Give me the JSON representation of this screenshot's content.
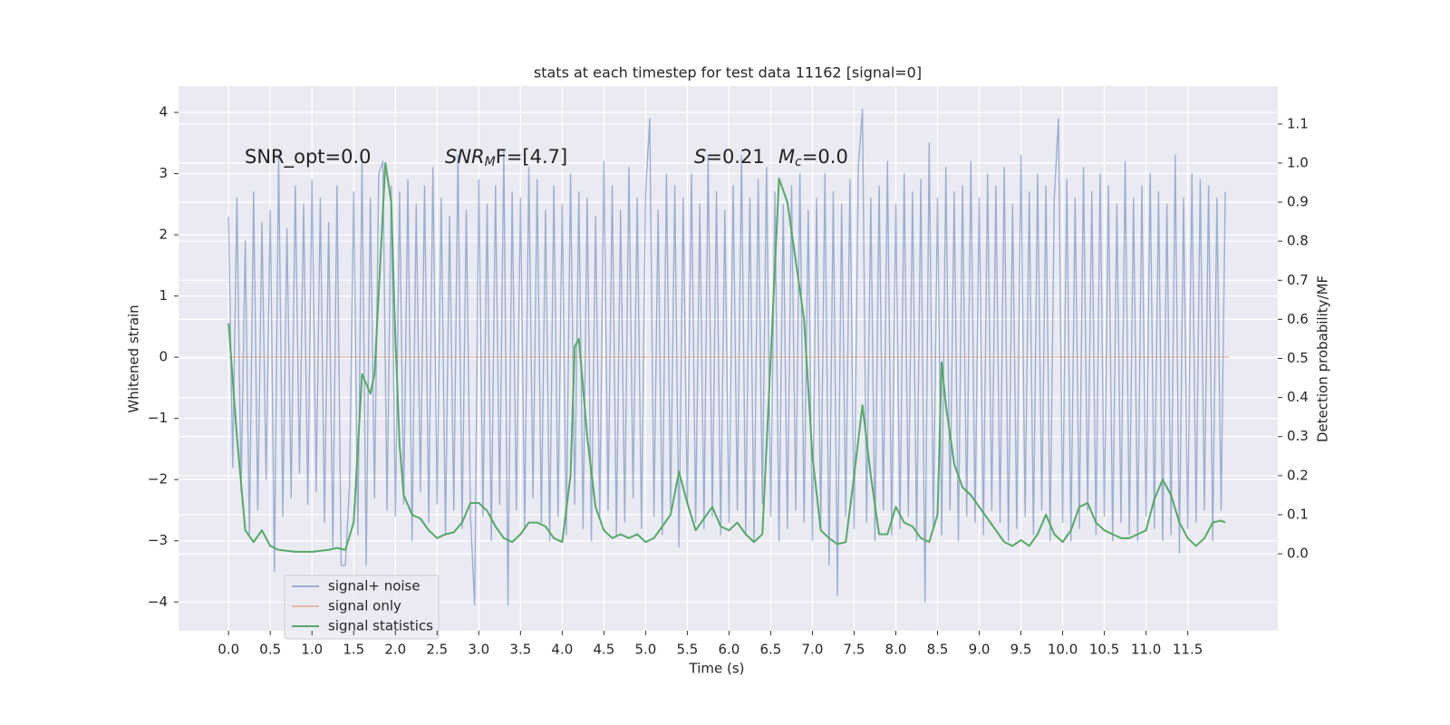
{
  "chart_data": {
    "type": "line",
    "title": "stats at each timestep for test data 11162 [signal=0]",
    "xlabel": "Time (s)",
    "ylabel": "Whitened strain",
    "y2label": "Detection probability/MF",
    "annotations": [
      "SNR_opt=0.0",
      [
        "SNR",
        "M",
        "F=[4.7]"
      ],
      [
        "S",
        "=0.21"
      ],
      [
        "M",
        "c",
        "=0.0"
      ]
    ],
    "xlim": [
      -0.6,
      12.58
    ],
    "ylim": [
      -4.47,
      4.43
    ],
    "y2lim": [
      -0.197,
      1.197
    ],
    "xticks": [
      {
        "value": 0,
        "label": "0.0"
      },
      0.5,
      {
        "value": 1,
        "label": "1.0"
      },
      1.5,
      {
        "value": 2,
        "label": "2.0"
      },
      2.5,
      {
        "value": 3,
        "label": "3.0"
      },
      3.5,
      {
        "value": 4,
        "label": "4.0"
      },
      4.5,
      {
        "value": 5,
        "label": "5.0"
      },
      5.5,
      {
        "value": 6,
        "label": "6.0"
      },
      6.5,
      {
        "value": 7,
        "label": "7.0"
      },
      7.5,
      {
        "value": 8,
        "label": "8.0"
      },
      8.5,
      {
        "value": 9,
        "label": "9.0"
      },
      9.5,
      {
        "value": 10,
        "label": "10.0"
      },
      10.5,
      {
        "value": 11,
        "label": "11.0"
      },
      11.5
    ],
    "yticks": [
      {
        "value": -4,
        "label": "−4"
      },
      {
        "value": -3,
        "label": "−3"
      },
      {
        "value": -2,
        "label": "−2"
      },
      {
        "value": -1,
        "label": "−1"
      },
      0,
      1,
      2,
      3,
      4
    ],
    "y2ticks": [
      {
        "value": 0,
        "label": "0.0"
      },
      0.1,
      0.2,
      0.3,
      0.4,
      0.5,
      0.6,
      0.7,
      0.8,
      0.9,
      {
        "value": 1,
        "label": "1.0"
      },
      1.1
    ],
    "grid": true,
    "legend": "lower left",
    "series": [
      {
        "name": "signal+ noise",
        "color": "#4c72b0",
        "opacity": 0.5,
        "x": [
          0,
          0.05,
          0.1,
          0.15,
          0.2,
          0.25,
          0.3,
          0.35,
          0.4,
          0.45,
          0.5,
          0.55,
          0.6,
          0.65,
          0.7,
          0.75,
          0.8,
          0.85,
          0.9,
          0.95,
          1,
          1.05,
          1.1,
          1.15,
          1.2,
          1.25,
          1.3,
          1.35,
          1.4,
          1.45,
          1.5,
          1.55,
          1.6,
          1.65,
          1.7,
          1.75,
          1.8,
          1.85,
          1.9,
          1.95,
          2,
          2.05,
          2.1,
          2.15,
          2.2,
          2.25,
          2.3,
          2.35,
          2.4,
          2.45,
          2.5,
          2.55,
          2.6,
          2.65,
          2.7,
          2.75,
          2.8,
          2.85,
          2.9,
          2.95,
          3,
          3.05,
          3.1,
          3.15,
          3.2,
          3.25,
          3.3,
          3.35,
          3.4,
          3.45,
          3.5,
          3.55,
          3.6,
          3.65,
          3.7,
          3.75,
          3.8,
          3.85,
          3.9,
          3.95,
          4,
          4.05,
          4.1,
          4.15,
          4.2,
          4.25,
          4.3,
          4.35,
          4.4,
          4.45,
          4.5,
          4.55,
          4.6,
          4.65,
          4.7,
          4.75,
          4.8,
          4.85,
          4.9,
          4.95,
          5,
          5.05,
          5.1,
          5.15,
          5.2,
          5.25,
          5.3,
          5.35,
          5.4,
          5.45,
          5.5,
          5.55,
          5.6,
          5.65,
          5.7,
          5.75,
          5.8,
          5.85,
          5.9,
          5.95,
          6,
          6.05,
          6.1,
          6.15,
          6.2,
          6.25,
          6.3,
          6.35,
          6.4,
          6.45,
          6.5,
          6.55,
          6.6,
          6.65,
          6.7,
          6.75,
          6.8,
          6.85,
          6.9,
          6.95,
          7,
          7.05,
          7.1,
          7.15,
          7.2,
          7.25,
          7.3,
          7.35,
          7.4,
          7.45,
          7.5,
          7.55,
          7.6,
          7.65,
          7.7,
          7.75,
          7.8,
          7.85,
          7.9,
          7.95,
          8,
          8.05,
          8.1,
          8.15,
          8.2,
          8.25,
          8.3,
          8.35,
          8.4,
          8.45,
          8.5,
          8.55,
          8.6,
          8.65,
          8.7,
          8.75,
          8.8,
          8.85,
          8.9,
          8.95,
          9,
          9.05,
          9.1,
          9.15,
          9.2,
          9.25,
          9.3,
          9.35,
          9.4,
          9.45,
          9.5,
          9.55,
          9.6,
          9.65,
          9.7,
          9.75,
          9.8,
          9.85,
          9.9,
          9.95,
          10,
          10.05,
          10.1,
          10.15,
          10.2,
          10.25,
          10.3,
          10.35,
          10.4,
          10.45,
          10.5,
          10.55,
          10.6,
          10.65,
          10.7,
          10.75,
          10.8,
          10.85,
          10.9,
          10.95,
          11,
          11.05,
          11.1,
          11.15,
          11.2,
          11.25,
          11.3,
          11.35,
          11.4,
          11.45,
          11.5,
          11.55,
          11.6,
          11.65,
          11.7,
          11.75,
          11.8,
          11.85,
          11.9,
          11.95
        ],
        "values": [
          2.3,
          -1.8,
          2.6,
          -2.2,
          1.9,
          -2.9,
          2.7,
          -2.5,
          2.2,
          -2.0,
          2.4,
          -3.5,
          3.3,
          -2.6,
          2.1,
          -2.3,
          2.8,
          -1.9,
          2.5,
          -2.4,
          2.9,
          -2.2,
          2.6,
          -2.7,
          2.2,
          -3.1,
          2.8,
          -3.4,
          -3.4,
          -2.1,
          2.7,
          -2.9,
          3.2,
          -3.4,
          2.6,
          -2.3,
          3.0,
          3.2,
          -2.5,
          2.8,
          -2.6,
          2.7,
          -2.4,
          2.9,
          -3.0,
          2.5,
          -2.2,
          2.8,
          -2.7,
          3.1,
          -2.4,
          2.6,
          -2.9,
          2.3,
          -2.5,
          3.3,
          -2.8,
          2.4,
          -2.6,
          -4.05,
          2.9,
          -2.6,
          2.5,
          -3.0,
          2.8,
          -2.4,
          3.4,
          -4.05,
          2.7,
          -2.5,
          2.6,
          -2.8,
          3.1,
          -2.3,
          2.9,
          -2.7,
          2.4,
          -3.0,
          2.8,
          -2.6,
          2.5,
          -2.9,
          3.0,
          -2.4,
          2.7,
          -2.8,
          2.6,
          -3.0,
          2.3,
          -2.6,
          3.2,
          -2.5,
          2.8,
          -2.9,
          2.4,
          -2.7,
          3.1,
          -2.3,
          2.6,
          -2.8,
          2.7,
          3.9,
          -2.6,
          2.4,
          -2.9,
          3.0,
          -2.5,
          2.8,
          -3.1,
          2.6,
          -2.4,
          3.0,
          -2.7,
          2.5,
          -2.8,
          3.3,
          -2.6,
          2.7,
          -2.9,
          2.4,
          -2.7,
          2.8,
          -2.5,
          3.3,
          -2.9,
          2.6,
          -3.0,
          2.9,
          -2.4,
          3.1,
          -2.6,
          2.7,
          -3.0,
          2.5,
          -2.8,
          2.8,
          -2.5,
          3.0,
          -2.7,
          2.4,
          -3.0,
          2.6,
          -2.8,
          3.0,
          -3.4,
          2.7,
          -3.9,
          2.5,
          -2.6,
          2.9,
          -2.8,
          3.1,
          4.05,
          -2.7,
          2.6,
          -3.0,
          2.8,
          -2.5,
          3.2,
          -2.9,
          2.5,
          -2.8,
          3.0,
          -2.6,
          2.7,
          -3.0,
          2.9,
          -4.0,
          3.5,
          -2.8,
          2.6,
          -2.9,
          3.1,
          -2.5,
          2.7,
          -3.0,
          2.8,
          -2.6,
          3.2,
          -2.7,
          2.6,
          -2.9,
          3.0,
          -2.5,
          2.8,
          -2.7,
          3.1,
          -3.0,
          2.5,
          -2.8,
          3.3,
          -2.6,
          2.7,
          -2.9,
          3.0,
          -2.5,
          2.8,
          -3.0,
          2.6,
          3.9,
          -2.7,
          2.9,
          -3.0,
          2.6,
          -2.8,
          3.1,
          -2.5,
          2.7,
          -2.9,
          3.0,
          -2.6,
          2.8,
          -3.0,
          2.5,
          -2.7,
          3.2,
          -2.9,
          2.6,
          -3.0,
          2.8,
          -2.6,
          3.0,
          -2.8,
          2.7,
          -3.0,
          2.5,
          -2.9,
          3.3,
          -3.2,
          2.6,
          -2.8,
          3.0,
          -2.7,
          2.9,
          -2.5,
          2.8,
          -3.0,
          2.6,
          -2.5,
          2.7
        ]
      },
      {
        "name": "signal only",
        "color": "#dd8452",
        "opacity": 0.5,
        "x": [
          0,
          12
        ],
        "values": [
          0,
          0
        ]
      },
      {
        "name": "signal statistics",
        "color": "#55a868",
        "opacity": 1,
        "axis": "y2",
        "x": [
          0,
          0.1,
          0.2,
          0.3,
          0.4,
          0.5,
          0.6,
          0.8,
          1.0,
          1.2,
          1.3,
          1.4,
          1.5,
          1.6,
          1.7,
          1.75,
          1.88,
          1.95,
          2.0,
          2.05,
          2.1,
          2.2,
          2.3,
          2.4,
          2.5,
          2.6,
          2.7,
          2.8,
          2.9,
          3.0,
          3.1,
          3.2,
          3.3,
          3.4,
          3.5,
          3.6,
          3.7,
          3.8,
          3.9,
          4.0,
          4.1,
          4.15,
          4.2,
          4.3,
          4.4,
          4.5,
          4.6,
          4.7,
          4.8,
          4.9,
          5.0,
          5.1,
          5.2,
          5.3,
          5.4,
          5.5,
          5.6,
          5.7,
          5.8,
          5.9,
          6.0,
          6.1,
          6.2,
          6.3,
          6.4,
          6.5,
          6.6,
          6.7,
          6.8,
          6.9,
          7.0,
          7.1,
          7.2,
          7.3,
          7.4,
          7.5,
          7.6,
          7.7,
          7.8,
          7.9,
          8.0,
          8.1,
          8.2,
          8.3,
          8.4,
          8.5,
          8.55,
          8.6,
          8.7,
          8.8,
          8.9,
          9.0,
          9.1,
          9.2,
          9.3,
          9.4,
          9.5,
          9.6,
          9.7,
          9.8,
          9.9,
          10.0,
          10.1,
          10.2,
          10.3,
          10.4,
          10.5,
          10.6,
          10.7,
          10.8,
          10.9,
          11.0,
          11.1,
          11.2,
          11.3,
          11.4,
          11.5,
          11.6,
          11.7,
          11.8,
          11.9,
          11.95
        ],
        "values": [
          0.59,
          0.3,
          0.06,
          0.03,
          0.06,
          0.02,
          0.01,
          0.005,
          0.005,
          0.01,
          0.015,
          0.01,
          0.08,
          0.46,
          0.41,
          0.46,
          1.0,
          0.9,
          0.55,
          0.28,
          0.15,
          0.1,
          0.09,
          0.06,
          0.04,
          0.05,
          0.055,
          0.08,
          0.13,
          0.13,
          0.11,
          0.07,
          0.04,
          0.03,
          0.05,
          0.08,
          0.08,
          0.07,
          0.04,
          0.03,
          0.2,
          0.53,
          0.55,
          0.3,
          0.12,
          0.06,
          0.04,
          0.05,
          0.04,
          0.05,
          0.03,
          0.04,
          0.07,
          0.1,
          0.21,
          0.13,
          0.06,
          0.09,
          0.12,
          0.07,
          0.06,
          0.08,
          0.05,
          0.03,
          0.05,
          0.5,
          0.96,
          0.9,
          0.75,
          0.6,
          0.25,
          0.06,
          0.04,
          0.025,
          0.03,
          0.2,
          0.38,
          0.2,
          0.05,
          0.05,
          0.12,
          0.08,
          0.07,
          0.04,
          0.03,
          0.1,
          0.49,
          0.38,
          0.23,
          0.17,
          0.15,
          0.12,
          0.09,
          0.06,
          0.03,
          0.02,
          0.035,
          0.02,
          0.05,
          0.1,
          0.05,
          0.03,
          0.06,
          0.12,
          0.13,
          0.08,
          0.06,
          0.05,
          0.04,
          0.04,
          0.05,
          0.06,
          0.14,
          0.19,
          0.15,
          0.08,
          0.04,
          0.02,
          0.04,
          0.08,
          0.085,
          0.08
        ]
      }
    ]
  }
}
